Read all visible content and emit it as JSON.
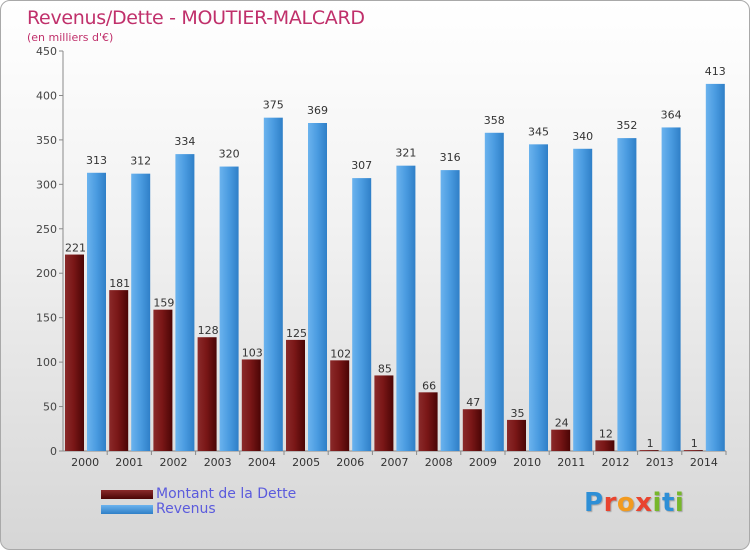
{
  "title": "Revenus/Dette - MOUTIER-MALCARD",
  "subtitle": "(en milliers d'€)",
  "colors": {
    "title": "#c0306b",
    "debt": "#7a1717",
    "revenue": "#4a9be0",
    "legend_text": "#5b5bdd"
  },
  "chart_data": {
    "type": "bar",
    "title": "Revenus/Dette - MOUTIER-MALCARD",
    "subtitle": "(en milliers d'€)",
    "categories": [
      "2000",
      "2001",
      "2002",
      "2003",
      "2004",
      "2005",
      "2006",
      "2007",
      "2008",
      "2009",
      "2010",
      "2011",
      "2012",
      "2013",
      "2014"
    ],
    "series": [
      {
        "name": "Montant de la Dette",
        "values": [
          221,
          181,
          159,
          128,
          103,
          125,
          102,
          85,
          66,
          47,
          35,
          24,
          12,
          1,
          1
        ]
      },
      {
        "name": "Revenus",
        "values": [
          313,
          312,
          334,
          320,
          375,
          369,
          307,
          321,
          316,
          358,
          345,
          340,
          352,
          364,
          413
        ]
      }
    ],
    "yticks": [
      0,
      50,
      100,
      150,
      200,
      250,
      300,
      350,
      400,
      450
    ],
    "ylim": [
      0,
      450
    ],
    "grid": false,
    "legend": "bottom-left"
  },
  "legend": [
    {
      "label": "Montant de la Dette"
    },
    {
      "label": "Revenus"
    }
  ],
  "logo": {
    "text": "Proxiti",
    "letters": [
      "P",
      "r",
      "o",
      "x",
      "i",
      "t",
      "i"
    ]
  }
}
